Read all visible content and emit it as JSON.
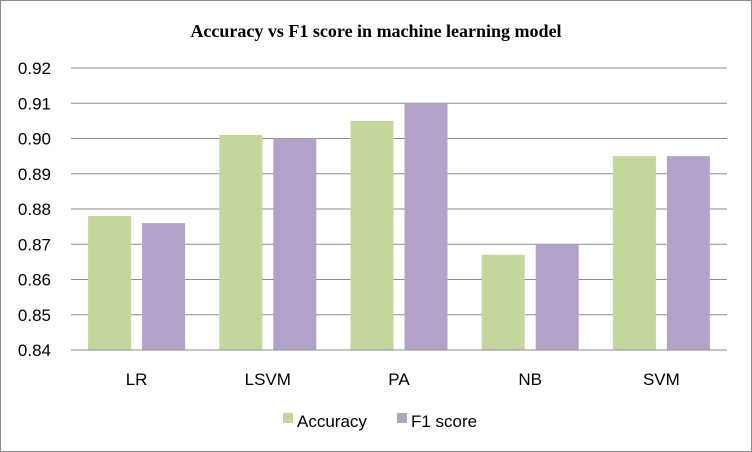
{
  "chart_data": {
    "type": "bar",
    "title": "Accuracy vs F1 score in machine learning model",
    "xlabel": "",
    "ylabel": "",
    "categories": [
      "LR",
      "LSVM",
      "PA",
      "NB",
      "SVM"
    ],
    "series": [
      {
        "name": "Accuracy",
        "color": "#c3d69b",
        "values": [
          0.878,
          0.901,
          0.905,
          0.867,
          0.895
        ]
      },
      {
        "name": "F1 score",
        "color": "#b3a2c7",
        "values": [
          0.876,
          0.9,
          0.91,
          0.87,
          0.895
        ]
      }
    ],
    "ylim": [
      0.84,
      0.92
    ],
    "yticks": [
      "0.84",
      "0.85",
      "0.86",
      "0.87",
      "0.88",
      "0.89",
      "0.90",
      "0.91",
      "0.92"
    ],
    "grid": true,
    "legend_position": "bottom"
  }
}
